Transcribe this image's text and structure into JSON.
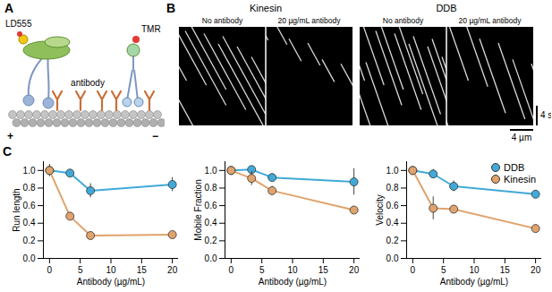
{
  "panels": {
    "A": {
      "letter": "A",
      "labels": {
        "dye_left": "LD555",
        "antibody": "antibody",
        "dye_right": "TMR",
        "plus_end": "+",
        "minus_end": "−"
      }
    },
    "B": {
      "letter": "B",
      "groups": [
        {
          "title": "Kinesin",
          "conditions": [
            "No antibody",
            "20 µg/mL antibody"
          ]
        },
        {
          "title": "DDB",
          "conditions": [
            "No antibody",
            "20 µg/mL antibody"
          ]
        }
      ],
      "scale_x": "4 µm",
      "scale_y": "4 s"
    },
    "C": {
      "letter": "C"
    }
  },
  "chart_data": [
    {
      "type": "line",
      "y_label": "Run length",
      "x_label": "Antibody (µg/mL)",
      "x": [
        0,
        3.33,
        6.67,
        20
      ],
      "xlim": [
        -1,
        21
      ],
      "xticks": [
        0,
        5,
        10,
        15,
        20
      ],
      "ylim": [
        0,
        1.1
      ],
      "yticks": [
        0,
        0.2,
        0.4,
        0.6,
        0.8,
        1
      ],
      "series": [
        {
          "name": "DDB",
          "color": "#41a9d8",
          "marker": "circle",
          "values": [
            1,
            0.97,
            0.77,
            0.84
          ],
          "errors": [
            0.05,
            0.03,
            0.08,
            0.08
          ]
        },
        {
          "name": "Kinesin",
          "color": "#e0a36d",
          "marker": "circle",
          "values": [
            1,
            0.48,
            0.26,
            0.27
          ],
          "errors": [
            0.07,
            0.03,
            0.01,
            0.01
          ]
        }
      ]
    },
    {
      "type": "line",
      "y_label": "Mobile Fraction",
      "x_label": "Antibody (µg/mL)",
      "x": [
        0,
        3.33,
        6.67,
        20
      ],
      "xlim": [
        -1,
        21
      ],
      "xticks": [
        0,
        5,
        10,
        15,
        20
      ],
      "ylim": [
        0,
        1.1
      ],
      "yticks": [
        0,
        0.2,
        0.4,
        0.6,
        0.8,
        1
      ],
      "series": [
        {
          "name": "DDB",
          "color": "#41a9d8",
          "marker": "circle",
          "values": [
            1,
            1.01,
            0.92,
            0.87
          ],
          "errors": [
            0.03,
            0.03,
            0.04,
            0.15
          ]
        },
        {
          "name": "Kinesin",
          "color": "#e0a36d",
          "marker": "circle",
          "values": [
            1,
            0.91,
            0.77,
            0.55
          ],
          "errors": [
            0.03,
            0.08,
            0.05,
            0.03
          ]
        }
      ]
    },
    {
      "type": "line",
      "y_label": "Velocity",
      "x_label": "Antibody (µg/mL)",
      "x": [
        0,
        3.33,
        6.67,
        20
      ],
      "xlim": [
        -1,
        21
      ],
      "xticks": [
        0,
        5,
        10,
        15,
        20
      ],
      "ylim": [
        0,
        1.1
      ],
      "yticks": [
        0,
        0.2,
        0.4,
        0.6,
        0.8,
        1
      ],
      "legend": "top-right",
      "series": [
        {
          "name": "DDB",
          "color": "#41a9d8",
          "marker": "circle",
          "values": [
            1,
            0.96,
            0.82,
            0.73
          ],
          "errors": [
            0.02,
            0.05,
            0.06,
            0.04
          ]
        },
        {
          "name": "Kinesin",
          "color": "#e0a36d",
          "marker": "circle",
          "values": [
            1,
            0.57,
            0.56,
            0.34
          ],
          "errors": [
            0.02,
            0.13,
            0.03,
            0.01
          ]
        }
      ]
    }
  ]
}
